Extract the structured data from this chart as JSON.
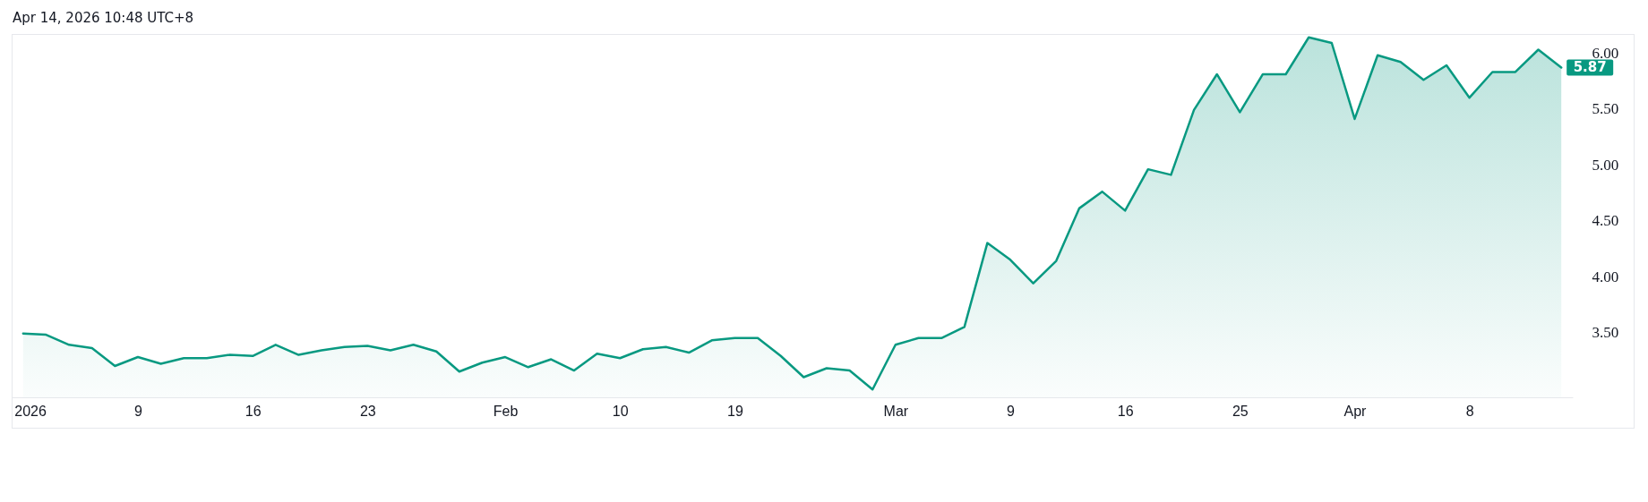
{
  "chart_data": {
    "type": "area",
    "annotations": [
      "Apr 14, 2026 10:48 UTC+8"
    ],
    "categories": [
      "2026",
      null,
      null,
      null,
      null,
      "9",
      null,
      null,
      null,
      null,
      "16",
      null,
      null,
      null,
      null,
      "23",
      null,
      null,
      null,
      null,
      null,
      "Feb",
      null,
      null,
      null,
      null,
      "10",
      null,
      null,
      null,
      null,
      "19",
      null,
      null,
      null,
      null,
      null,
      null,
      "Mar",
      null,
      null,
      null,
      null,
      "9",
      null,
      null,
      null,
      null,
      "16",
      null,
      null,
      null,
      null,
      "25",
      null,
      null,
      null,
      null,
      "Apr",
      null,
      null,
      null,
      null,
      "8",
      null,
      null,
      null,
      null
    ],
    "values": [
      3.49,
      3.48,
      3.39,
      3.36,
      3.2,
      3.28,
      3.22,
      3.27,
      3.27,
      3.3,
      3.29,
      3.39,
      3.3,
      3.34,
      3.37,
      3.38,
      3.34,
      3.39,
      3.33,
      3.15,
      3.23,
      3.28,
      3.19,
      3.26,
      3.16,
      3.31,
      3.27,
      3.35,
      3.37,
      3.32,
      3.43,
      3.45,
      3.45,
      3.29,
      3.1,
      3.18,
      3.16,
      2.99,
      3.39,
      3.45,
      3.45,
      3.55,
      4.3,
      4.15,
      3.94,
      4.14,
      4.61,
      4.76,
      4.59,
      4.96,
      4.91,
      5.49,
      5.81,
      5.47,
      5.81,
      5.81,
      6.14,
      6.09,
      5.41,
      5.98,
      5.92,
      5.76,
      5.89,
      5.6,
      5.83,
      5.83,
      6.03,
      5.87
    ],
    "value_labels": [
      null,
      null,
      null,
      null,
      null,
      null,
      null,
      null,
      null,
      null,
      null,
      null,
      null,
      null,
      null,
      null,
      null,
      null,
      null,
      null,
      null,
      null,
      null,
      null,
      null,
      null,
      null,
      null,
      null,
      null,
      null,
      null,
      null,
      null,
      null,
      null,
      null,
      null,
      null,
      null,
      null,
      null,
      null,
      null,
      null,
      null,
      null,
      null,
      null,
      null,
      null,
      null,
      null,
      null,
      null,
      null,
      null,
      null,
      null,
      null,
      null,
      null,
      null,
      null,
      null,
      null,
      null,
      "5.87"
    ],
    "color": "#089981",
    "ylim": [
      2.92,
      6.17
    ],
    "yticks": [
      {
        "value": 3.5,
        "label": "3.50"
      },
      {
        "value": 4,
        "label": "4.00"
      },
      {
        "value": 4.5,
        "label": "4.50"
      },
      {
        "value": 5,
        "label": "5.00"
      },
      {
        "value": 5.5,
        "label": "5.50"
      },
      {
        "value": 6,
        "label": "6.00"
      }
    ]
  }
}
